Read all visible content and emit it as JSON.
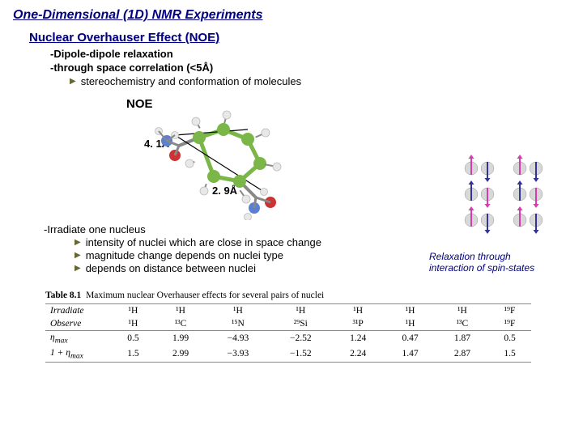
{
  "title": "One-Dimensional (1D) NMR Experiments",
  "subtitle": "Nuclear Overhauser Effect (NOE)",
  "bullets": {
    "b1": "-Dipole-dipole relaxation",
    "b2": "-through space correlation (<5Å)",
    "sub1": "stereochemistry and conformation of molecules"
  },
  "molecule": {
    "noe": "NOE",
    "dist1": "4. 1Å",
    "dist2": "2. 9Å",
    "colors": {
      "carbon": "#7ab648",
      "hydrogen": "#e8e8e8",
      "oxygen": "#cc3333",
      "nitrogen": "#5b7fd4",
      "bond": "#888888",
      "h_border": "#bbbbbb"
    }
  },
  "spin": {
    "arrow_up": "#d63cae",
    "arrow_down": "#333399",
    "caption_l1": "Relaxation through",
    "caption_l2": "interaction of spin-states"
  },
  "irradiate": {
    "head": "-Irradiate one nucleus",
    "i1": "intensity of nuclei which are close in space change",
    "i2": "magnitude change depends on nuclei type",
    "i3": "depends on distance between nuclei"
  },
  "table": {
    "caption_bold": "Table 8.1",
    "caption_rest": "  Maximum nuclear Overhauser effects for several pairs of nuclei",
    "row_irr": "Irradiate",
    "row_obs": "Observe",
    "row_eta": "η",
    "row_eta_sub": "max",
    "row_one": "1 + η",
    "headers_irr": [
      "¹H",
      "¹H",
      "¹H",
      "¹H",
      "¹H",
      "¹H",
      "¹H",
      "¹⁹F"
    ],
    "headers_obs": [
      "¹H",
      "¹³C",
      "¹⁵N",
      "²⁹Si",
      "³¹P",
      "¹H",
      "¹³C",
      "¹⁹F"
    ],
    "eta": [
      "0.5",
      "1.99",
      "−4.93",
      "−2.52",
      "1.24",
      "0.47",
      "1.87",
      "0.5"
    ],
    "one": [
      "1.5",
      "2.99",
      "−3.93",
      "−1.52",
      "2.24",
      "1.47",
      "2.87",
      "1.5"
    ]
  }
}
